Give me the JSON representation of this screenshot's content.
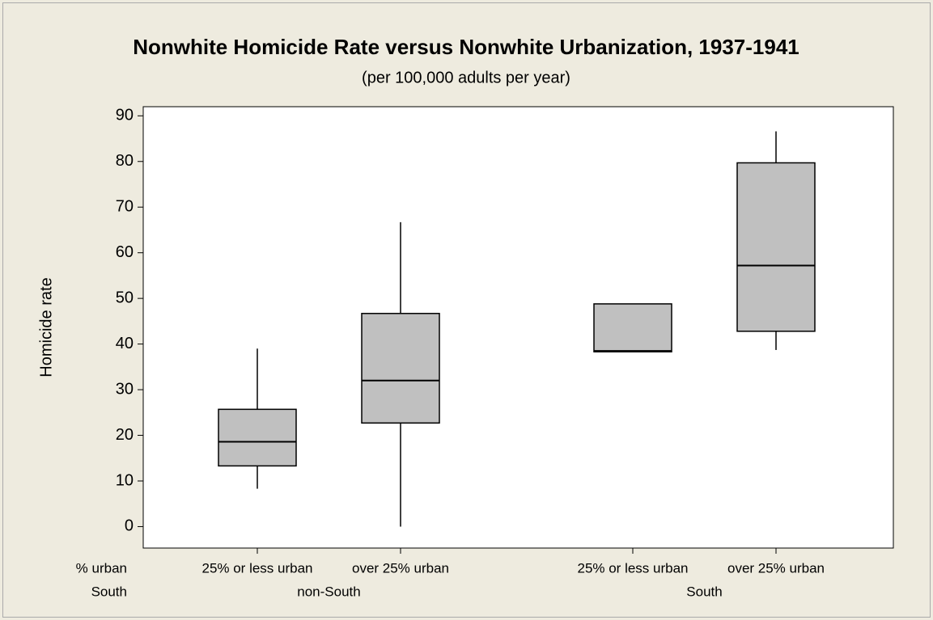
{
  "chart_data": {
    "type": "box",
    "title": "Nonwhite Homicide Rate versus Nonwhite Urbanization, 1937-1941",
    "subtitle": "(per 100,000 adults per year)",
    "y_label": "Homicide rate",
    "x_level_labels": [
      "% urban",
      "South"
    ],
    "ylim": [
      -4.7,
      92
    ],
    "yticks": [
      0,
      10,
      20,
      30,
      40,
      50,
      60,
      70,
      80,
      90
    ],
    "color": "#c0c0c0",
    "groups": [
      {
        "name": "non-South",
        "categories": [
          "25% or less urban",
          "over 25% urban"
        ],
        "boxes": [
          {
            "min": 8.3,
            "q1": 13.3,
            "median": 18.6,
            "q3": 25.7,
            "max": 39
          },
          {
            "min": 0,
            "q1": 22.7,
            "median": 32,
            "q3": 46.7,
            "max": 66.7
          }
        ]
      },
      {
        "name": "South",
        "categories": [
          "25% or less urban",
          "over 25% urban"
        ],
        "boxes": [
          {
            "min": 38.3,
            "q1": 38.3,
            "median": 38.5,
            "q3": 48.8,
            "max": 48.8
          },
          {
            "min": 38.7,
            "q1": 42.8,
            "median": 57.2,
            "q3": 79.7,
            "max": 86.6
          }
        ]
      }
    ]
  }
}
